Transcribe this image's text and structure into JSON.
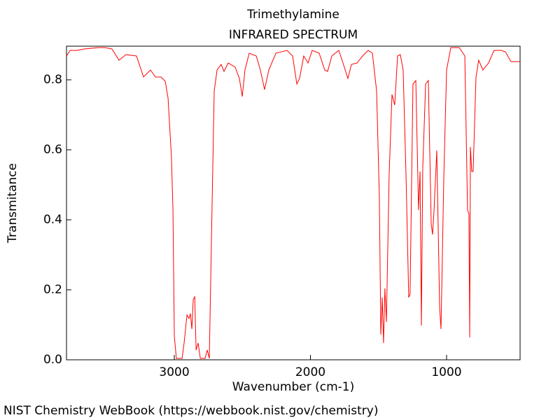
{
  "chart_data": {
    "type": "line",
    "title": "Trimethylamine",
    "subtitle": "INFRARED SPECTRUM",
    "x_label": "Wavenumber (cm-1)",
    "y_label": "Transmitance",
    "footer": "NIST Chemistry WebBook (https://webbook.nist.gov/chemistry)",
    "color": "#ff0000",
    "xlim": [
      3792,
      460
    ],
    "ylim": [
      0,
      0.896
    ],
    "xticks": [
      3000,
      2000,
      1000
    ],
    "yticks": [
      {
        "value": 0,
        "label": "0.0"
      },
      0.2,
      0.4,
      0.6,
      0.8
    ],
    "x": [
      3792,
      3766,
      3715,
      3663,
      3560,
      3509,
      3458,
      3406,
      3355,
      3278,
      3226,
      3175,
      3139,
      3098,
      3067,
      3046,
      3021,
      3010,
      3000,
      2985,
      2943,
      2928,
      2907,
      2892,
      2882,
      2871,
      2861,
      2850,
      2840,
      2825,
      2809,
      2774,
      2758,
      2743,
      2728,
      2707,
      2686,
      2656,
      2635,
      2604,
      2553,
      2522,
      2501,
      2481,
      2450,
      2398,
      2368,
      2337,
      2306,
      2254,
      2172,
      2131,
      2100,
      2080,
      2049,
      2018,
      1987,
      1936,
      1895,
      1874,
      1843,
      1792,
      1761,
      1725,
      1699,
      1658,
      1617,
      1576,
      1545,
      1514,
      1494,
      1483,
      1473,
      1463,
      1453,
      1442,
      1422,
      1401,
      1381,
      1360,
      1340,
      1319,
      1298,
      1278,
      1268,
      1247,
      1226,
      1206,
      1195,
      1185,
      1175,
      1154,
      1134,
      1113,
      1103,
      1092,
      1072,
      1051,
      1041,
      1020,
      1000,
      969,
      907,
      866,
      846,
      836,
      830,
      825,
      815,
      805,
      784,
      764,
      733,
      692,
      651,
      599,
      568,
      527,
      460
    ],
    "values": [
      0.868,
      0.884,
      0.884,
      0.888,
      0.892,
      0.892,
      0.888,
      0.856,
      0.872,
      0.868,
      0.808,
      0.828,
      0.808,
      0.808,
      0.796,
      0.748,
      0.578,
      0.428,
      0.068,
      0.004,
      0.004,
      0.048,
      0.128,
      0.118,
      0.132,
      0.088,
      0.172,
      0.18,
      0.028,
      0.048,
      0.004,
      0.004,
      0.028,
      0.004,
      0.328,
      0.768,
      0.828,
      0.844,
      0.824,
      0.848,
      0.836,
      0.804,
      0.752,
      0.828,
      0.876,
      0.868,
      0.828,
      0.772,
      0.828,
      0.876,
      0.884,
      0.868,
      0.788,
      0.804,
      0.868,
      0.848,
      0.884,
      0.876,
      0.828,
      0.824,
      0.868,
      0.884,
      0.848,
      0.804,
      0.844,
      0.848,
      0.868,
      0.884,
      0.876,
      0.768,
      0.468,
      0.072,
      0.178,
      0.048,
      0.204,
      0.108,
      0.528,
      0.758,
      0.728,
      0.868,
      0.872,
      0.828,
      0.528,
      0.178,
      0.188,
      0.788,
      0.798,
      0.428,
      0.538,
      0.098,
      0.548,
      0.788,
      0.798,
      0.388,
      0.358,
      0.428,
      0.598,
      0.148,
      0.088,
      0.528,
      0.828,
      0.892,
      0.892,
      0.868,
      0.428,
      0.418,
      0.064,
      0.608,
      0.538,
      0.538,
      0.808,
      0.856,
      0.828,
      0.848,
      0.884,
      0.884,
      0.88,
      0.852,
      0.852
    ]
  }
}
